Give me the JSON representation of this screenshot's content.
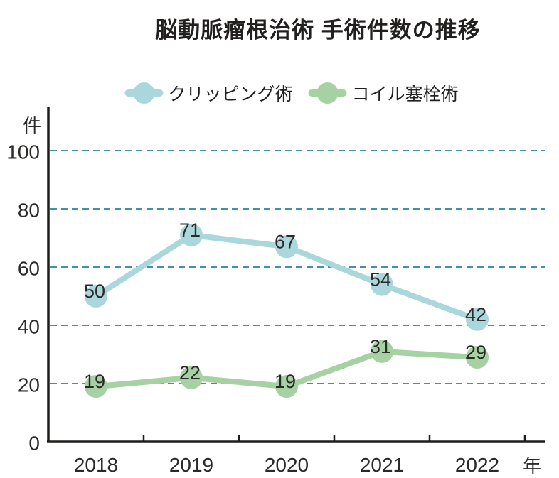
{
  "title": "脳動脈瘤根治術 手術件数の推移",
  "colors": {
    "clipping_series": "#aad7db",
    "coil_series": "#a6d2a3",
    "gridline": "#3e92ad",
    "axis": "#1d1d1b",
    "text": "#2b2a29"
  },
  "legend": {
    "items": [
      {
        "label": "クリッピング術"
      },
      {
        "label": "コイル塞栓術"
      }
    ]
  },
  "chart_data": {
    "type": "line",
    "title": "脳動脈瘤根治術 手術件数の推移",
    "categories": [
      "2018",
      "2019",
      "2020",
      "2021",
      "2022"
    ],
    "x_unit_label": "年",
    "y_unit_label": "件",
    "y_ticks": [
      0,
      20,
      40,
      60,
      80,
      100
    ],
    "ylim": [
      0,
      100
    ],
    "grid": "horizontal dashed",
    "legend_position": "top",
    "data_labels": "shown on points",
    "series": [
      {
        "name": "クリッピング術",
        "color": "#aad7db",
        "values": [
          50,
          71,
          67,
          54,
          42
        ]
      },
      {
        "name": "コイル塞栓術",
        "color": "#a6d2a3",
        "values": [
          19,
          22,
          19,
          31,
          29
        ]
      }
    ]
  }
}
